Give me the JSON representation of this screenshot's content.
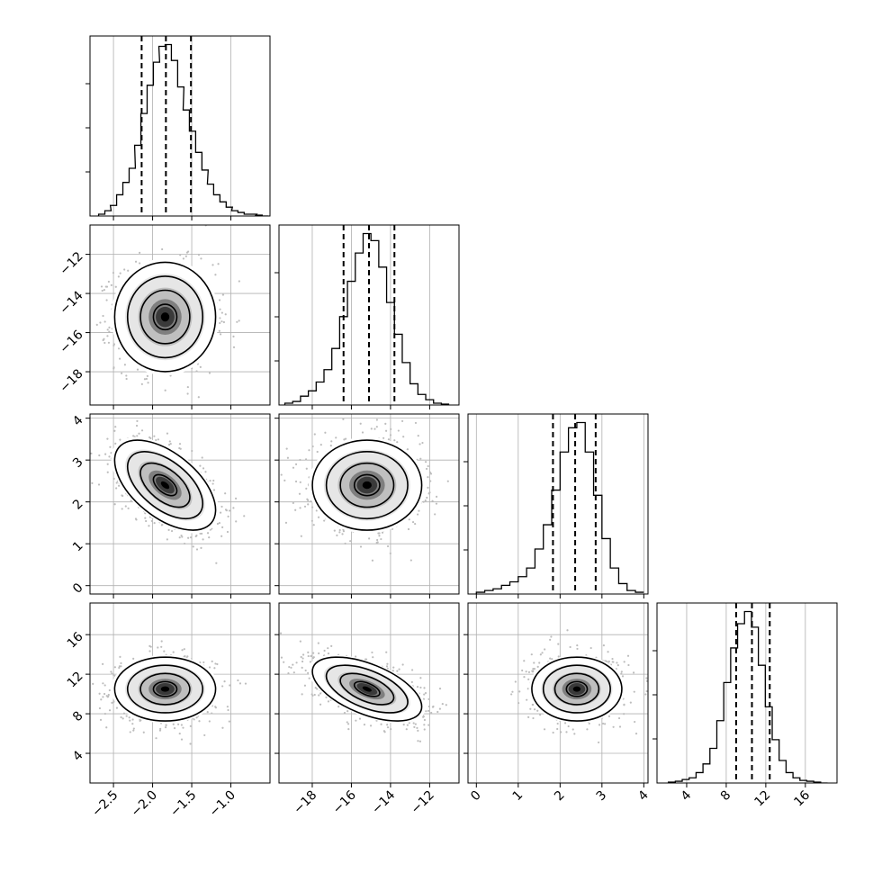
{
  "chart_data": {
    "type": "corner",
    "title": "",
    "grid": true,
    "parameters": [
      {
        "range": [
          -2.8,
          -0.5
        ],
        "ticks": [
          -2.5,
          -2.0,
          -1.5,
          -1.0
        ],
        "tick_labels": [
          "−2.5",
          "−2.0",
          "−1.5",
          "−1.0"
        ],
        "hist_x": [
          -2.65,
          -2.57,
          -2.5,
          -2.42,
          -2.34,
          -2.26,
          -2.19,
          -2.11,
          -2.03,
          -1.95,
          -1.88,
          -1.8,
          -1.72,
          -1.64,
          -1.57,
          -1.49,
          -1.41,
          -1.33,
          -1.26,
          -1.18,
          -1.1,
          -1.02,
          -0.95,
          -0.87,
          -0.79,
          -0.71,
          -0.64,
          -0.56
        ],
        "hist_counts": [
          0.01,
          0.03,
          0.06,
          0.12,
          0.19,
          0.27,
          0.4,
          0.58,
          0.74,
          0.87,
          0.96,
          0.97,
          0.88,
          0.73,
          0.6,
          0.48,
          0.36,
          0.26,
          0.18,
          0.12,
          0.08,
          0.05,
          0.03,
          0.02,
          0.01,
          0.01,
          0.005,
          0
        ],
        "quantiles": [
          -2.14,
          -1.83,
          -1.51
        ],
        "center": -1.84,
        "sigma": 0.3
      },
      {
        "range": [
          -19.7,
          -10.5
        ],
        "ticks": [
          -18,
          -16,
          -14,
          -12
        ],
        "tick_labels": [
          "−18",
          "−16",
          "−14",
          "−12"
        ],
        "hist_x": [
          -19.2,
          -18.8,
          -18.4,
          -18.0,
          -17.6,
          -17.2,
          -16.8,
          -16.4,
          -16.0,
          -15.6,
          -15.2,
          -14.8,
          -14.4,
          -14.0,
          -13.6,
          -13.2,
          -12.8,
          -12.4,
          -12.0,
          -11.6,
          -11.2
        ],
        "hist_counts": [
          0.01,
          0.02,
          0.05,
          0.08,
          0.13,
          0.2,
          0.32,
          0.5,
          0.7,
          0.86,
          0.97,
          0.93,
          0.78,
          0.58,
          0.4,
          0.24,
          0.12,
          0.06,
          0.03,
          0.01,
          0.005
        ],
        "quantiles": [
          -16.4,
          -15.1,
          -13.8
        ],
        "center": -15.2,
        "sigma": 1.3
      },
      {
        "range": [
          -0.2,
          4.1
        ],
        "ticks": [
          0,
          1,
          2,
          3,
          4
        ],
        "tick_labels": [
          "0",
          "1",
          "2",
          "3",
          "4"
        ],
        "hist_x": [
          0.1,
          0.3,
          0.5,
          0.7,
          0.9,
          1.1,
          1.3,
          1.5,
          1.7,
          1.9,
          2.1,
          2.3,
          2.5,
          2.7,
          2.9,
          3.1,
          3.3,
          3.5,
          3.7,
          3.9
        ],
        "hist_counts": [
          0.01,
          0.02,
          0.03,
          0.05,
          0.07,
          0.1,
          0.15,
          0.26,
          0.4,
          0.6,
          0.82,
          0.96,
          0.99,
          0.82,
          0.57,
          0.32,
          0.15,
          0.06,
          0.02,
          0.01
        ],
        "quantiles": [
          1.83,
          2.36,
          2.85
        ],
        "center": 2.4,
        "sigma": 0.5
      },
      {
        "range": [
          1.0,
          19.2
        ],
        "ticks": [
          4,
          8,
          12,
          16
        ],
        "tick_labels": [
          "4",
          "8",
          "12",
          "16"
        ],
        "hist_x": [
          2.5,
          3.2,
          3.9,
          4.6,
          5.3,
          6.0,
          6.7,
          7.4,
          8.1,
          8.8,
          9.5,
          10.2,
          10.9,
          11.6,
          12.3,
          13.0,
          13.7,
          14.4,
          15.1,
          15.8,
          16.5,
          17.2,
          17.9
        ],
        "hist_counts": [
          0.005,
          0.01,
          0.02,
          0.03,
          0.06,
          0.11,
          0.2,
          0.36,
          0.58,
          0.78,
          0.92,
          0.99,
          0.9,
          0.68,
          0.44,
          0.25,
          0.13,
          0.06,
          0.03,
          0.015,
          0.01,
          0.005,
          0
        ],
        "quantiles": [
          9.0,
          10.6,
          12.4
        ],
        "center": 10.5,
        "sigma": 1.5
      }
    ],
    "correlations": {
      "1,0": 0.0,
      "2,0": -0.55,
      "2,1": 0.0,
      "3,0": 0.0,
      "3,1": -0.55,
      "3,2": 0.0
    }
  }
}
